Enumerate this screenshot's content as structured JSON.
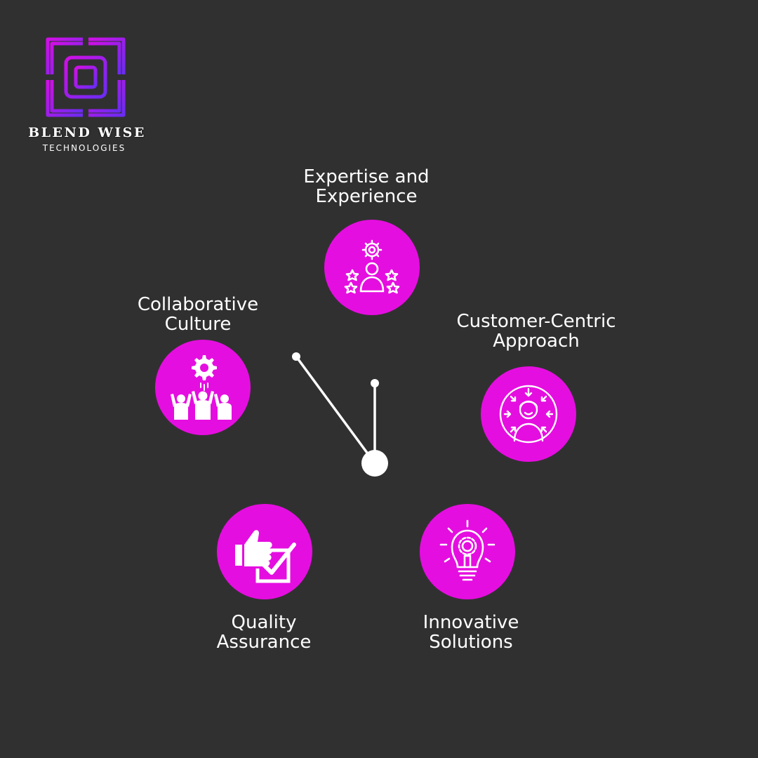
{
  "brand": {
    "name": "BLEND WISE",
    "subtitle": "TECHNOLOGIES",
    "logo_icon": "interlocking-squares-logo"
  },
  "colors": {
    "background": "#313031",
    "accent": "#e50ee0",
    "text": "#ffffff",
    "logo_gradient": [
      "#d10fe6",
      "#6a2cf2"
    ]
  },
  "features": [
    {
      "line1": "Expertise and",
      "line2": "Experience",
      "icon": "expert-stars-gear-icon"
    },
    {
      "line1": "Customer-Centric",
      "line2": "Approach",
      "icon": "customer-focus-icon"
    },
    {
      "line1": "Innovative",
      "line2": "Solutions",
      "icon": "lightbulb-gear-icon"
    },
    {
      "line1": "Quality",
      "line2": "Assurance",
      "icon": "thumbs-up-check-icon"
    },
    {
      "line1": "Collaborative",
      "line2": "Culture",
      "icon": "team-gear-icon"
    }
  ]
}
